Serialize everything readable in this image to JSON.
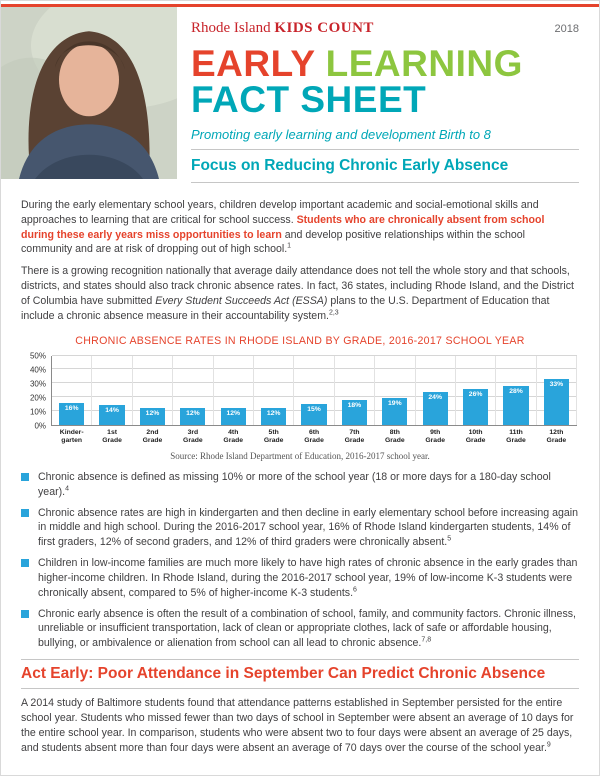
{
  "header": {
    "brand_a": "Rhode Island ",
    "brand_b": "KIDS COUNT",
    "year": "2018",
    "title_word1": "EARLY",
    "title_word2": "LEARNING",
    "title_line2": "FACT SHEET",
    "subtitle": "Promoting early learning and development Birth to 8",
    "section_heading": "Focus on Reducing Chronic Early Absence"
  },
  "intro": {
    "p1_a": "During the early elementary school years, children develop important academic and social-emotional skills and approaches to learning that are critical for school success. ",
    "p1_strong": "Students who are chronically absent from school during these early years miss opportunities to learn",
    "p1_b": " and develop positive relationships within the school community and are at risk of dropping out of high school.",
    "p1_sup": "1",
    "p2_a": "There is a growing recognition nationally that average daily attendance does not tell the whole story and that schools, districts, and states should also track chronic absence rates. In fact, 36 states, including Rhode Island, and the District of Columbia have submitted ",
    "p2_em": "Every Student Succeeds Act (ESSA)",
    "p2_b": " plans to the U.S. Department of Education that include a chronic absence measure in their accountability system.",
    "p2_sup": "2,3"
  },
  "chart_data": {
    "type": "bar",
    "title": "CHRONIC ABSENCE RATES IN RHODE ISLAND BY GRADE, 2016-2017 SCHOOL YEAR",
    "categories": [
      [
        "Kinder-",
        "garten"
      ],
      [
        "1st",
        "Grade"
      ],
      [
        "2nd",
        "Grade"
      ],
      [
        "3rd",
        "Grade"
      ],
      [
        "4th",
        "Grade"
      ],
      [
        "5th",
        "Grade"
      ],
      [
        "6th",
        "Grade"
      ],
      [
        "7th",
        "Grade"
      ],
      [
        "8th",
        "Grade"
      ],
      [
        "9th",
        "Grade"
      ],
      [
        "10th",
        "Grade"
      ],
      [
        "11th",
        "Grade"
      ],
      [
        "12th",
        "Grade"
      ]
    ],
    "values": [
      16,
      14,
      12,
      12,
      12,
      12,
      15,
      18,
      19,
      24,
      26,
      28,
      33
    ],
    "ylim": [
      0,
      50
    ],
    "yticks": [
      "0%",
      "10%",
      "20%",
      "30%",
      "40%",
      "50%"
    ],
    "xlabel": "",
    "ylabel": "",
    "grid": "horizontal",
    "legend": "none",
    "bar_color": "#29A4DB",
    "source": "Source: Rhode Island Department of Education, 2016-2017 school year."
  },
  "bullets": [
    {
      "text": "Chronic absence is defined as missing 10% or more of the school year (18 or more days for a 180-day school year).",
      "sup": "4"
    },
    {
      "text": "Chronic absence rates are high in kindergarten and then decline in early elementary school before increasing again in middle and high school. During the 2016-2017 school year, 16% of Rhode Island kindergarten students, 14% of first graders, 12% of second graders, and 12% of third graders were chronically absent.",
      "sup": "5"
    },
    {
      "text": "Children in low-income families are much more likely to have high rates of chronic absence in the early grades than higher-income children. In Rhode Island, during the 2016-2017 school year, 19% of low-income K-3 students were chronically absent, compared to 5% of higher-income K-3 students.",
      "sup": "6"
    },
    {
      "text": "Chronic early absence is often the result of a combination of school, family, and community factors. Chronic illness, unreliable or insufficient transportation, lack of clean or appropriate clothes, lack of safe or affordable housing, bullying, or ambivalence or alienation from school can all lead to chronic absence.",
      "sup": "7,8"
    }
  ],
  "act_early": {
    "heading": "Act Early: Poor Attendance in September Can Predict Chronic Absence",
    "body": "A 2014 study of Baltimore students found that attendance patterns established in September persisted for the entire school year. Students who missed fewer than two days of school in September were absent an average of 10 days for the entire school year. In comparison, students who were absent two to four days were absent an average of 25 days, and students absent more than four days were absent an average of 70 days over the course of the school year.",
    "sup": "9"
  },
  "colors": {
    "red": "#E5432C",
    "green": "#8DC63F",
    "teal": "#00A7B7",
    "bar_blue": "#29A4DB",
    "brand_red": "#C8242B"
  }
}
